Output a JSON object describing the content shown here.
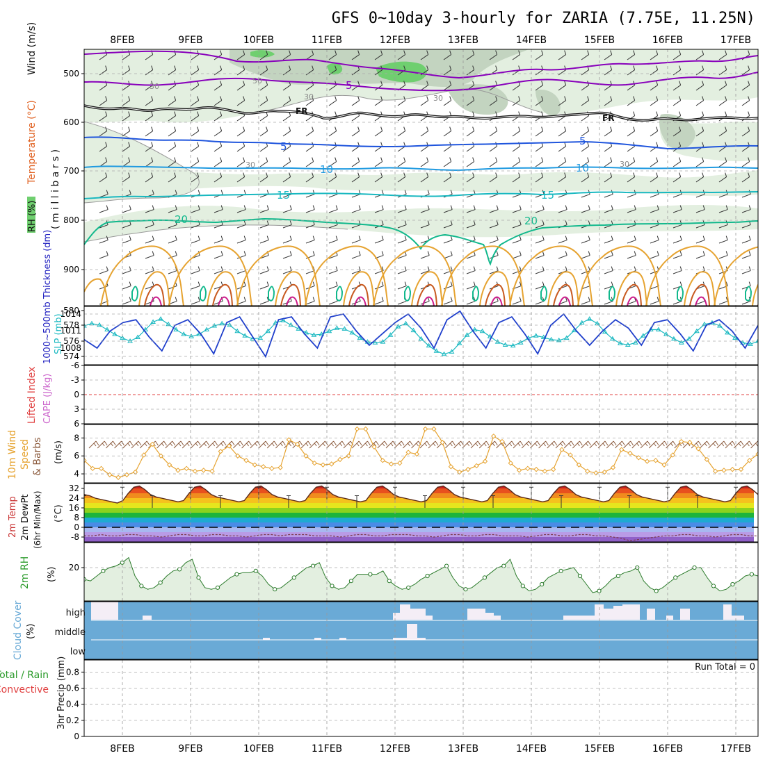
{
  "title": "GFS 0~10day 3-hourly for ZARIA (7.75E, 11.25N)",
  "dates": [
    "8FEB",
    "9FEB",
    "10FEB",
    "11FEB",
    "12FEB",
    "13FEB",
    "14FEB",
    "15FEB",
    "16FEB",
    "17FEB"
  ],
  "colors": {
    "rh_light": "#e3efe0",
    "rh_mid": "#c3d4c0",
    "rh_dark": "#6fcf6f",
    "purple": "#8800bb",
    "blue": "#1f55dd",
    "lightblue": "#1f9ae0",
    "cyan": "#18b8c0",
    "teal": "#11b88c",
    "orange": "#e6a330",
    "cloud": "#6aaad6",
    "grid": "#aaaaaa"
  },
  "panels": {
    "upper": {
      "ylabel_rh": "RH (%)",
      "ylabel_temp": "Temperature (°C)",
      "ylabel_wind": "Wind (m/s)",
      "ylabel_p": "( m i l l i b a r s )",
      "yticks": [
        "500",
        "600",
        "700",
        "800",
        "900"
      ],
      "contour_labels": [
        "5",
        "FR",
        "FR",
        "5",
        "5",
        "10",
        "10",
        "15",
        "15",
        "20",
        "20",
        "30",
        "50",
        "30",
        "30",
        "30",
        "30"
      ]
    },
    "slp": {
      "ylabel_thick": "1000~500mb Thickness (dm)",
      "ylabel_slp": "SLP (mb)",
      "thick_ticks": [
        "580",
        "578",
        "576",
        "574"
      ],
      "slp_ticks": [
        "1014",
        "1011",
        "1008"
      ]
    },
    "li": {
      "ylabel_li": "Lifted Index",
      "ylabel_cape": "CAPE (J/kg)",
      "yticks": [
        "-6",
        "-3",
        "0",
        "3",
        "6"
      ]
    },
    "wind": {
      "ylabel1": "10m Wind",
      "ylabel2": "Speed",
      "ylabel3": "& Barbs",
      "unit": "(m/s)",
      "yticks": [
        "8",
        "6",
        "4"
      ]
    },
    "temp": {
      "ylabel1": "2m Temp",
      "ylabel2": "2m DewPt",
      "ylabel3": "(6hr Min/Max)",
      "unit": "(°C)",
      "yticks": [
        "32",
        "24",
        "16",
        "8",
        "0",
        "-8"
      ]
    },
    "rh": {
      "ylabel": "2m RH",
      "unit": "(%)",
      "yticks": [
        "20"
      ]
    },
    "cloud": {
      "ylabel": "Cloud Cover",
      "unit": "(%)",
      "levels": [
        "high",
        "middle",
        "low"
      ]
    },
    "precip": {
      "ylabel1": "Total / Rain",
      "ylabel2": "Convective",
      "ylabel3": "3hr Precip (mm)",
      "yticks": [
        "0.8",
        "0.6",
        "0.4",
        "0.2",
        "0"
      ],
      "run_total": "Run Total = 0"
    }
  },
  "chart_data": [
    {
      "type": "line",
      "name": "2m Temp",
      "x_start": "7FEB 12Z",
      "x_step_hours": 3,
      "ylim": [
        -12,
        36
      ],
      "series": [
        {
          "name": "2m Temp",
          "values": [
            27,
            26,
            24,
            23,
            22,
            21,
            20,
            22,
            28,
            33,
            34,
            31,
            27,
            25,
            24,
            23,
            22,
            21,
            22,
            28,
            33,
            34,
            31,
            27,
            25,
            24,
            23,
            22,
            21,
            22,
            28,
            33,
            34,
            31,
            27,
            25,
            24,
            23,
            22,
            21,
            22,
            28,
            33,
            34,
            31,
            27,
            25,
            24,
            23,
            22,
            21,
            22,
            28,
            33,
            34,
            31,
            27,
            25,
            24,
            23,
            22,
            21,
            22,
            28,
            33,
            34,
            31,
            27,
            25,
            24,
            23,
            22,
            21,
            22,
            28,
            33,
            34,
            31,
            27,
            25,
            24,
            23,
            22,
            21,
            22,
            28,
            33,
            34,
            31,
            27,
            25,
            24,
            23,
            22,
            21,
            22,
            28,
            33,
            34,
            31,
            27,
            25,
            24,
            23,
            22,
            21,
            22,
            28,
            33,
            34,
            31,
            27,
            25,
            24,
            23,
            22,
            21,
            22,
            28,
            33,
            34,
            31,
            27
          ]
        },
        {
          "name": "2m DewPt",
          "values": [
            -7,
            -7,
            -6,
            -7,
            -7,
            -6,
            -6,
            -7,
            -7,
            -8,
            -7,
            -6,
            -6,
            -7,
            -7,
            -6,
            -6,
            -7,
            -7,
            -8,
            -7,
            -6,
            -6,
            -7,
            -6,
            -6,
            -6,
            -7,
            -7,
            -7,
            -8,
            -7,
            -6,
            -6,
            -7,
            -7,
            -6,
            -6,
            -6,
            -7,
            -7,
            -8,
            -7,
            -6,
            -6,
            -7,
            -7,
            -6,
            -6,
            -7,
            -7,
            -7,
            -8,
            -7,
            -6,
            -6,
            -7,
            -7,
            -6,
            -6,
            -7,
            -7,
            -8,
            -9,
            -11,
            -10,
            -9,
            -8,
            -7,
            -7,
            -6,
            -6,
            -7,
            -7,
            -8,
            -7,
            -6,
            -6,
            -7,
            -7
          ]
        }
      ]
    },
    {
      "type": "line",
      "name": "10m Wind Speed",
      "x_start": "7FEB 12Z",
      "x_step_hours": 3,
      "ylim": [
        3,
        9.5
      ],
      "series": [
        {
          "name": "10m Wind Speed",
          "values": [
            5.5,
            4.6,
            4.6,
            3.9,
            3.6,
            3.9,
            4.2,
            6.1,
            7.3,
            6.0,
            5.0,
            4.4,
            4.6,
            4.3,
            4.4,
            4.3,
            6.5,
            7.1,
            6.0,
            5.5,
            5.0,
            4.8,
            4.6,
            4.7,
            7.8,
            7.3,
            6.0,
            5.2,
            5.0,
            5.1,
            5.6,
            6.0,
            9.0,
            9.0,
            7.0,
            5.5,
            5.1,
            5.2,
            6.4,
            6.2,
            9.0,
            9.0,
            7.5,
            4.8,
            4.2,
            4.5,
            4.9,
            5.4,
            8.2,
            7.6,
            5.2,
            4.4,
            4.6,
            4.5,
            4.3,
            4.5,
            6.7,
            6.1,
            5.0,
            4.3,
            4.1,
            4.2,
            4.7,
            6.7,
            6.3,
            5.8,
            5.4,
            5.5,
            5.0,
            6.1,
            7.6,
            7.5,
            6.8,
            5.6,
            4.3,
            4.4,
            4.5,
            4.5,
            5.5,
            6.2
          ]
        }
      ]
    },
    {
      "type": "line",
      "name": "2m RH",
      "x_start": "7FEB 12Z",
      "x_step_hours": 3,
      "ylim": [
        0,
        35
      ],
      "series": [
        {
          "name": "2m RH",
          "values": [
            13,
            12,
            15,
            18,
            20,
            21,
            23,
            26,
            15,
            9,
            7,
            8,
            11,
            15,
            18,
            19,
            23,
            25,
            14,
            8,
            7,
            8,
            11,
            14,
            16,
            17,
            17,
            18,
            15,
            10,
            7,
            8,
            11,
            14,
            17,
            20,
            21,
            23,
            14,
            9,
            7,
            8,
            12,
            16,
            16,
            16,
            16,
            18,
            12,
            9,
            7,
            8,
            10,
            13,
            15,
            17,
            19,
            21,
            14,
            9,
            7,
            8,
            11,
            14,
            17,
            20,
            21,
            25,
            15,
            9,
            6,
            7,
            10,
            14,
            16,
            18,
            19,
            20,
            15,
            10,
            5,
            6,
            9,
            13,
            15,
            17,
            18,
            20,
            12,
            8,
            6,
            8,
            11,
            14,
            16,
            18,
            20,
            20,
            14,
            9,
            6,
            7,
            10,
            12,
            15,
            16,
            15
          ]
        }
      ]
    },
    {
      "type": "line",
      "name": "SLP and Thickness",
      "x_start": "7FEB 12Z",
      "x_step_hours": 3,
      "series": [
        {
          "name": "Thickness",
          "values": [
            578.0,
            578.3,
            578.1,
            577.5,
            576.9,
            576.4,
            576.0,
            576.5,
            577.5,
            578.5,
            578.9,
            578.2,
            577.5,
            576.9,
            576.6,
            576.9,
            577.5,
            578.0,
            578.3,
            578.1,
            577.3,
            576.7,
            576.3,
            576.4,
            577.3,
            578.4,
            578.7,
            578.1,
            577.6,
            577.1,
            576.8,
            576.9,
            577.3,
            577.7,
            577.6,
            577.1,
            576.4,
            575.9,
            575.8,
            575.9,
            576.8,
            577.9,
            578.3,
            577.4,
            576.3,
            575.4,
            574.7,
            574.3,
            574.6,
            575.7,
            576.8,
            577.5,
            577.3,
            576.6,
            575.9,
            575.5,
            575.4,
            575.8,
            576.4,
            576.7,
            576.5,
            576.2,
            576.1,
            576.4,
            577.4,
            578.4,
            578.9,
            578.3,
            577.2,
            576.3,
            575.7,
            575.5,
            575.8,
            576.7,
            577.5,
            577.5,
            576.9,
            576.3,
            575.8,
            576.3,
            577.3,
            578.2,
            578.4,
            578.0,
            577.1,
            576.4,
            575.8,
            575.6,
            576.0
          ]
        },
        {
          "name": "SLP",
          "values": [
            1009.5,
            1008.0,
            1011.0,
            1012.5,
            1013.0,
            1010.0,
            1007.5,
            1012.0,
            1013.0,
            1010.5,
            1007.0,
            1012.5,
            1013.5,
            1010.0,
            1006.5,
            1013.0,
            1013.5,
            1010.5,
            1008.0,
            1013.5,
            1014.0,
            1011.0,
            1008.5,
            1010.5,
            1012.5,
            1014.0,
            1011.5,
            1008.0,
            1013.0,
            1014.5,
            1011.0,
            1008.0,
            1012.5,
            1013.5,
            1010.5,
            1007.0,
            1012.0,
            1014.0,
            1011.0,
            1008.5,
            1011.0,
            1013.0,
            1011.5,
            1008.5,
            1012.5,
            1013.0,
            1010.5,
            1007.5,
            1012.0,
            1013.0,
            1011.0,
            1008.0,
            1012.0
          ]
        }
      ]
    }
  ]
}
